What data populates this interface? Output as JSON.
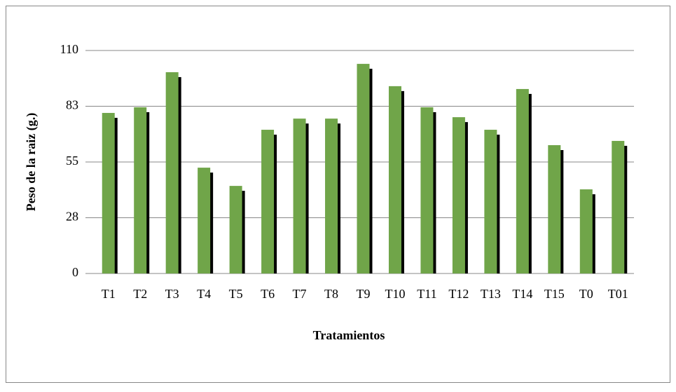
{
  "chart_data": {
    "type": "bar",
    "x_label": "Tratamientos",
    "y_label": "Peso de la raiz (g.)",
    "categories": [
      "T1",
      "T2",
      "T3",
      "T4",
      "T5",
      "T6",
      "T7",
      "T8",
      "T9",
      "T10",
      "T11",
      "T12",
      "T13",
      "T14",
      "T15",
      "T0",
      "T01"
    ],
    "values": [
      79.2,
      82,
      99.3,
      52.2,
      43.2,
      70.9,
      76.4,
      76.4,
      103.4,
      92.4,
      82,
      77.1,
      70.9,
      91,
      63.3,
      41.5,
      65.4
    ],
    "color": "#70a549",
    "ylim": [
      0,
      110
    ],
    "yticks": [
      0,
      {
        "value": 27.5,
        "label": "28"
      },
      55,
      {
        "value": 82.5,
        "label": "83"
      },
      110
    ],
    "grid": true
  }
}
